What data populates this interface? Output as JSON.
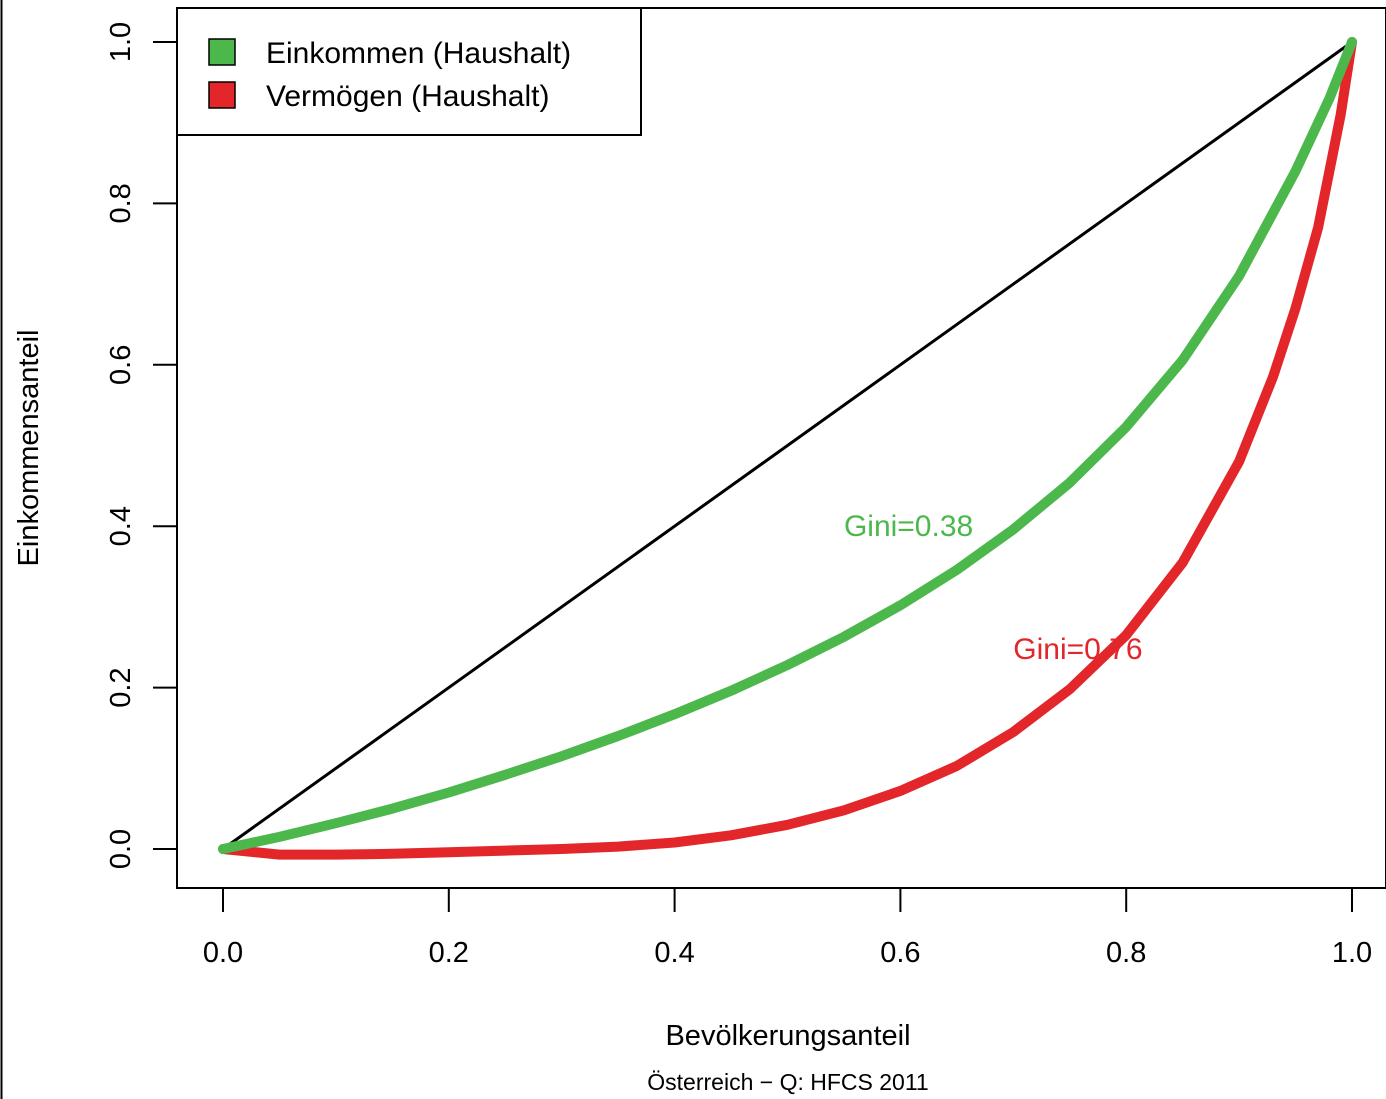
{
  "chart_data": {
    "type": "line",
    "xlabel": "Bevölkerungsanteil",
    "ylabel": "Einkommensanteil",
    "caption": "Österreich − Q: HFCS 2011",
    "xlim": [
      0.0,
      1.0
    ],
    "ylim": [
      0.0,
      1.0
    ],
    "x_ticks": [
      "0.0",
      "0.2",
      "0.4",
      "0.6",
      "0.8",
      "1.0"
    ],
    "y_ticks": [
      "0.0",
      "0.2",
      "0.4",
      "0.6",
      "0.8",
      "1.0"
    ],
    "grid": false,
    "legend_position": "top-left",
    "equality_line": {
      "x": [
        0.0,
        1.0
      ],
      "y": [
        0.0,
        1.0
      ],
      "color": "#000000"
    },
    "series": [
      {
        "name": "Einkommen (Haushalt)",
        "color": "#4cb84c",
        "x": [
          0.0,
          0.05,
          0.1,
          0.15,
          0.2,
          0.25,
          0.3,
          0.35,
          0.4,
          0.45,
          0.5,
          0.55,
          0.6,
          0.65,
          0.7,
          0.75,
          0.8,
          0.85,
          0.9,
          0.95,
          0.98,
          1.0
        ],
        "y": [
          0.0,
          0.015,
          0.032,
          0.05,
          0.07,
          0.092,
          0.115,
          0.14,
          0.167,
          0.196,
          0.228,
          0.263,
          0.302,
          0.346,
          0.396,
          0.454,
          0.523,
          0.606,
          0.71,
          0.84,
          0.93,
          1.0
        ],
        "annotation": {
          "text": "Gini=0.38",
          "x": 0.55,
          "y": 0.4
        }
      },
      {
        "name": "Vermögen (Haushalt)",
        "color": "#e3262a",
        "x": [
          0.0,
          0.05,
          0.1,
          0.15,
          0.2,
          0.25,
          0.3,
          0.35,
          0.4,
          0.45,
          0.5,
          0.55,
          0.6,
          0.65,
          0.7,
          0.75,
          0.8,
          0.85,
          0.9,
          0.93,
          0.95,
          0.97,
          0.98,
          0.99,
          1.0
        ],
        "y": [
          0.0,
          -0.007,
          -0.007,
          -0.006,
          -0.004,
          -0.002,
          0.0,
          0.003,
          0.008,
          0.017,
          0.03,
          0.048,
          0.072,
          0.103,
          0.145,
          0.198,
          0.265,
          0.355,
          0.48,
          0.585,
          0.67,
          0.77,
          0.84,
          0.91,
          1.0
        ],
        "annotation": {
          "text": "Gini=0.76",
          "x": 0.7,
          "y": 0.248
        }
      }
    ]
  }
}
